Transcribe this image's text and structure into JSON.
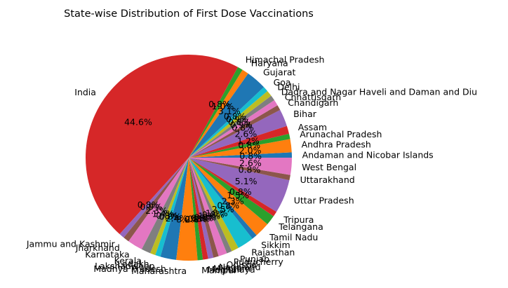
{
  "chart_data": {
    "type": "pie",
    "title": "State-wise Distribution of First Dose Vaccinations",
    "start_angle_deg": 0,
    "direction": "counterclockwise",
    "autopct_format": "%.1f%%",
    "colors": [
      "#1f77b4",
      "#ff7f0e",
      "#2ca02c",
      "#d62728",
      "#9467bd",
      "#8c564b",
      "#e377c2",
      "#7f7f7f",
      "#bcbd22",
      "#17becf"
    ],
    "slices": [
      {
        "label": "Andaman and Nicobar Islands",
        "value": 0.8
      },
      {
        "label": "Andhra Pradesh",
        "value": 2.0
      },
      {
        "label": "Arunachal Pradesh",
        "value": 0.8
      },
      {
        "label": "Assam",
        "value": 1.2
      },
      {
        "label": "Bihar",
        "value": 2.6
      },
      {
        "label": "Chandigarh",
        "value": 0.8
      },
      {
        "label": "Chhattisgarh",
        "value": 0.9
      },
      {
        "label": "Dadra and Nagar Haveli and Daman and Diu",
        "value": 0.8
      },
      {
        "label": "Delhi",
        "value": 0.9
      },
      {
        "label": "Goa",
        "value": 0.8
      },
      {
        "label": "Gujarat",
        "value": 3.1
      },
      {
        "label": "Haryana",
        "value": 1.0
      },
      {
        "label": "Himachal Pradesh",
        "value": 0.8
      },
      {
        "label": "India",
        "value": 44.6
      },
      {
        "label": "Jammu and Kashmir",
        "value": 0.8
      },
      {
        "label": "Jharkhand",
        "value": 0.9
      },
      {
        "label": "Karnataka",
        "value": 2.3
      },
      {
        "label": "Kerala",
        "value": 1.4
      },
      {
        "label": "Ladakh",
        "value": 0.8
      },
      {
        "label": "Lakshadweep",
        "value": 0.8
      },
      {
        "label": "Madhya Pradesh",
        "value": 2.4
      },
      {
        "label": "Maharashtra",
        "value": 3.2
      },
      {
        "label": "Manipur",
        "value": 0.8
      },
      {
        "label": "Meghalaya",
        "value": 0.8
      },
      {
        "label": "Mizoram",
        "value": 0.8
      },
      {
        "label": "Nagaland",
        "value": 0.8
      },
      {
        "label": "Odisha",
        "value": 1.3
      },
      {
        "label": "Puducherry",
        "value": 0.8
      },
      {
        "label": "Punjab",
        "value": 1.1
      },
      {
        "label": "Rajasthan",
        "value": 2.5
      },
      {
        "label": "Sikkim",
        "value": 0.8
      },
      {
        "label": "Tamil Nadu",
        "value": 2.3
      },
      {
        "label": "Telangana",
        "value": 1.5
      },
      {
        "label": "Tripura",
        "value": 0.8
      },
      {
        "label": "Uttar Pradesh",
        "value": 5.1
      },
      {
        "label": "Uttarakhand",
        "value": 0.8
      },
      {
        "label": "West Bengal",
        "value": 2.6
      }
    ]
  }
}
